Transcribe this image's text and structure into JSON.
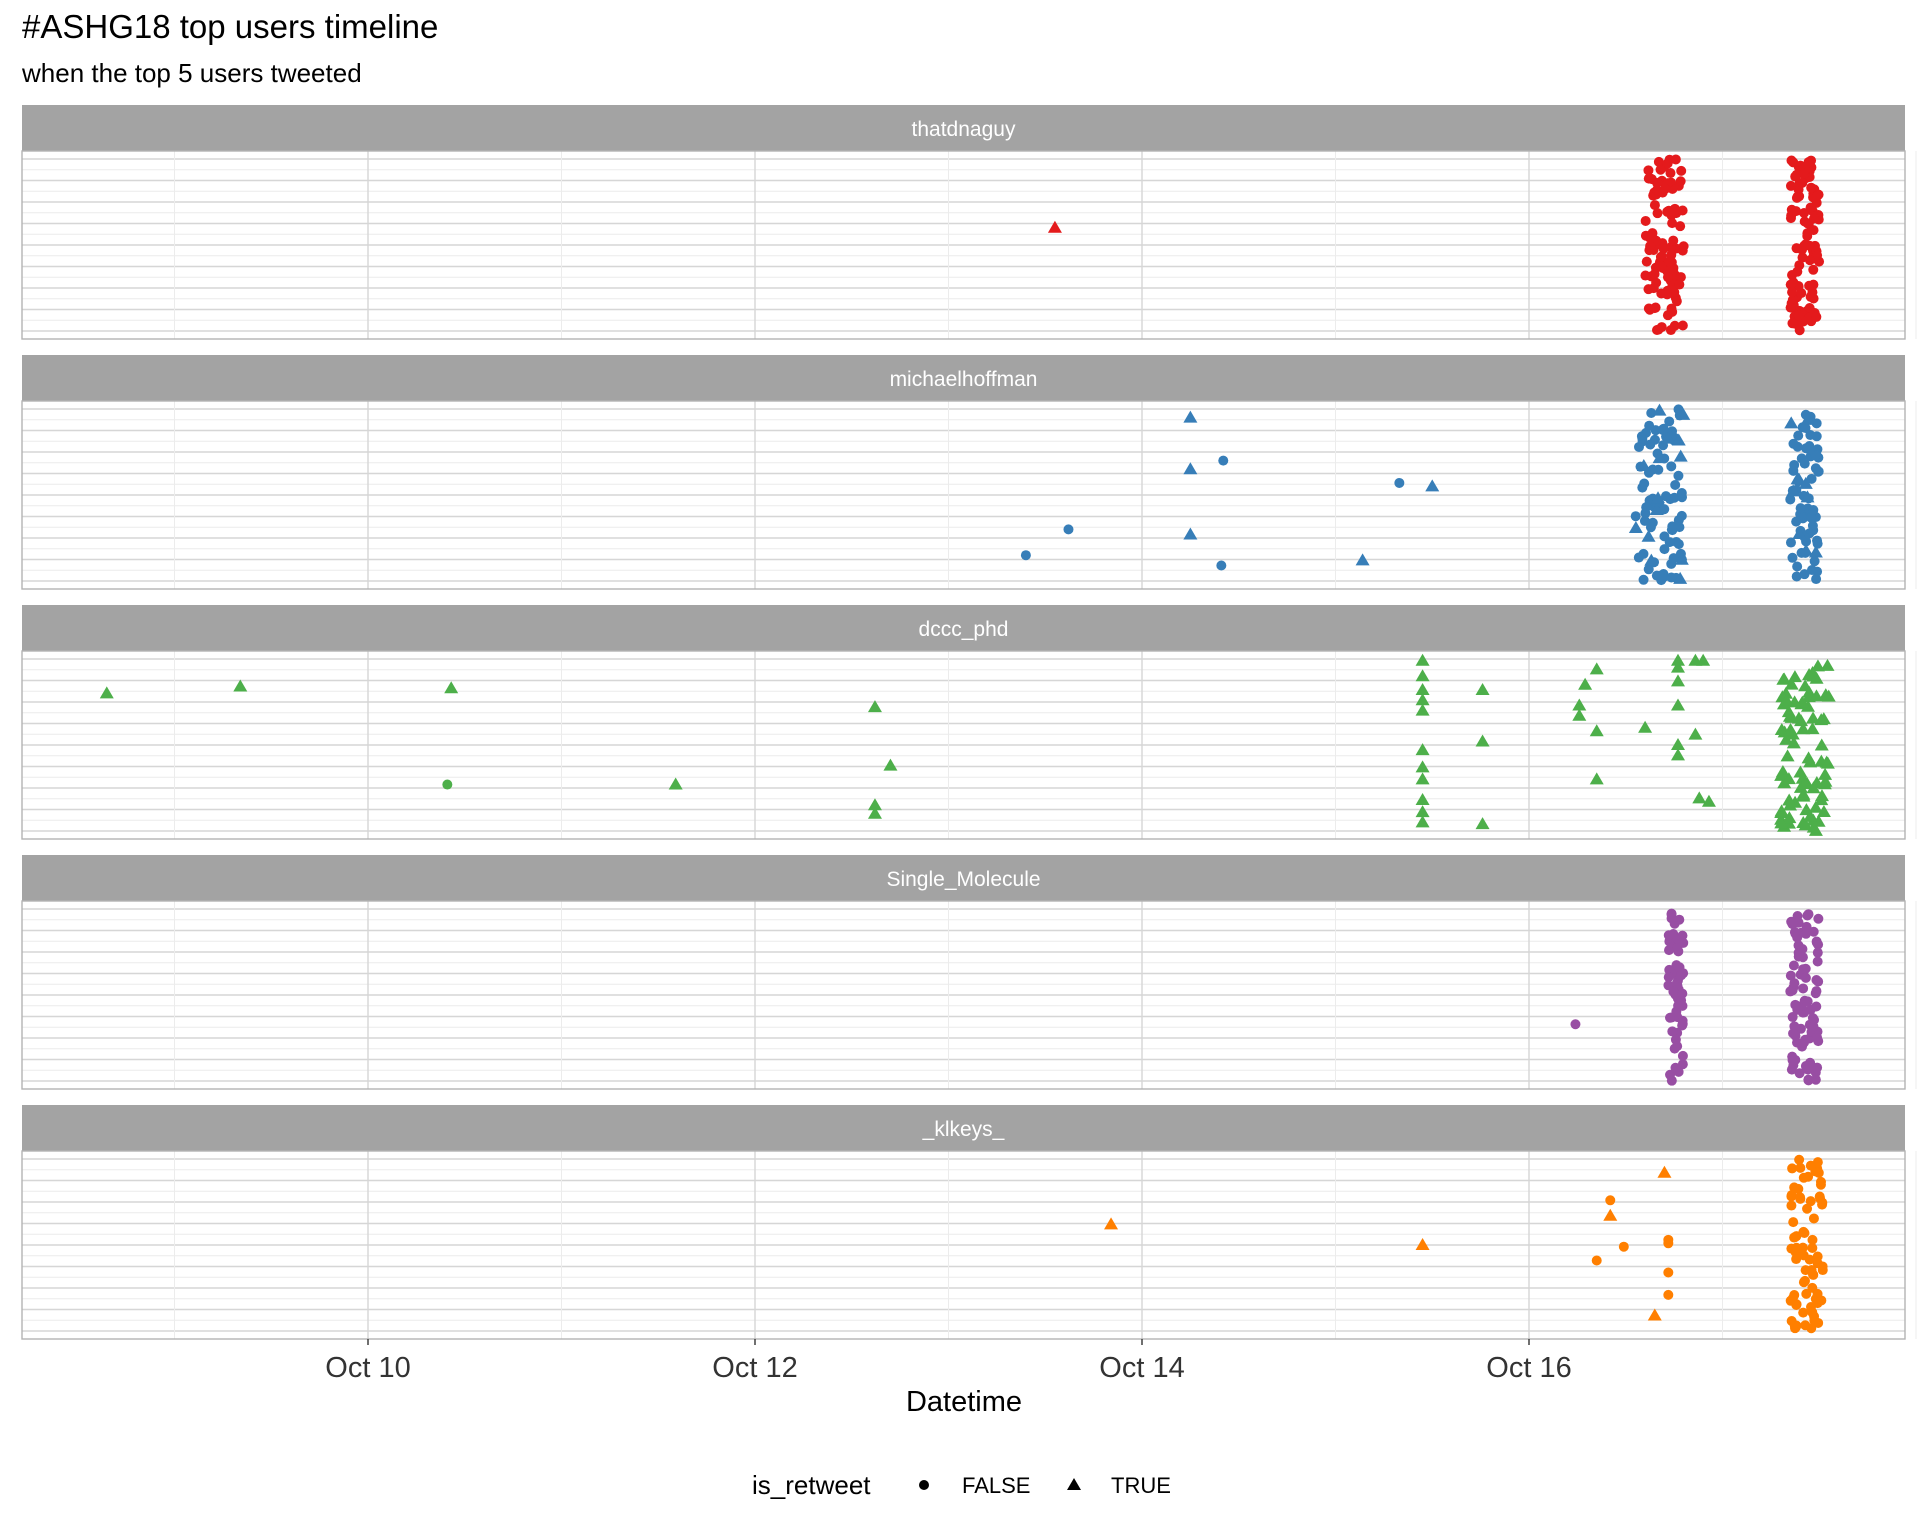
{
  "chart_data": {
    "type": "scatter",
    "title": "#ASHG18 top users timeline",
    "subtitle": "when the top 5 users tweeted",
    "xlabel": "Datetime",
    "ylabel": "",
    "x_unit": "days since Oct 10 00:00",
    "xlim": [
      -1.35,
      8.4
    ],
    "x_ticks": [
      {
        "value": 0,
        "label": "Oct 10"
      },
      {
        "value": 2,
        "label": "Oct 12"
      },
      {
        "value": 4,
        "label": "Oct 14"
      },
      {
        "value": 6,
        "label": "Oct 16"
      }
    ],
    "ylim": [
      0,
      1
    ],
    "legend": {
      "title": "is_retweet",
      "position": "bottom",
      "entries": [
        {
          "label": "FALSE",
          "shape": "circle"
        },
        {
          "label": "TRUE",
          "shape": "triangle"
        }
      ]
    },
    "panels": [
      {
        "name": "thatdnaguy",
        "color": "#E41A1C",
        "points": [
          {
            "x": 3.55,
            "y": 0.6,
            "retweet": true
          }
        ],
        "clusters": [
          {
            "x_min": 6.6,
            "x_max": 6.8,
            "count": 110,
            "retweet": false
          },
          {
            "x_min": 7.35,
            "x_max": 7.5,
            "count": 95,
            "retweet": false
          }
        ]
      },
      {
        "name": "michaelhoffman",
        "color": "#377EB8",
        "points": [
          {
            "x": 4.25,
            "y": 0.95,
            "retweet": true
          },
          {
            "x": 4.42,
            "y": 0.7,
            "retweet": false
          },
          {
            "x": 4.25,
            "y": 0.65,
            "retweet": true
          },
          {
            "x": 5.33,
            "y": 0.57,
            "retweet": false
          },
          {
            "x": 5.5,
            "y": 0.55,
            "retweet": true
          },
          {
            "x": 3.62,
            "y": 0.3,
            "retweet": false
          },
          {
            "x": 4.25,
            "y": 0.27,
            "retweet": true
          },
          {
            "x": 3.4,
            "y": 0.15,
            "retweet": false
          },
          {
            "x": 4.41,
            "y": 0.09,
            "retweet": false
          },
          {
            "x": 5.14,
            "y": 0.12,
            "retweet": true
          }
        ],
        "clusters": [
          {
            "x_min": 6.55,
            "x_max": 6.8,
            "count": 80,
            "retweet": false
          },
          {
            "x_min": 6.55,
            "x_max": 6.8,
            "count": 14,
            "retweet": true
          },
          {
            "x_min": 7.35,
            "x_max": 7.5,
            "count": 62,
            "retweet": false
          },
          {
            "x_min": 7.35,
            "x_max": 7.5,
            "count": 10,
            "retweet": true
          }
        ]
      },
      {
        "name": "dccc_phd",
        "color": "#4DAF4A",
        "points": [
          {
            "x": -1.35,
            "y": 0.8,
            "retweet": true
          },
          {
            "x": -0.66,
            "y": 0.84,
            "retweet": true
          },
          {
            "x": 0.43,
            "y": 0.83,
            "retweet": true
          },
          {
            "x": 0.41,
            "y": 0.27,
            "retweet": false
          },
          {
            "x": 1.59,
            "y": 0.27,
            "retweet": true
          },
          {
            "x": 2.62,
            "y": 0.72,
            "retweet": true
          },
          {
            "x": 2.7,
            "y": 0.38,
            "retweet": true
          },
          {
            "x": 2.62,
            "y": 0.15,
            "retweet": true
          },
          {
            "x": 2.62,
            "y": 0.1,
            "retweet": true
          },
          {
            "x": 5.45,
            "y": 0.99,
            "retweet": true
          },
          {
            "x": 5.45,
            "y": 0.9,
            "retweet": true
          },
          {
            "x": 5.45,
            "y": 0.82,
            "retweet": true
          },
          {
            "x": 5.45,
            "y": 0.76,
            "retweet": true
          },
          {
            "x": 5.45,
            "y": 0.7,
            "retweet": true
          },
          {
            "x": 5.45,
            "y": 0.47,
            "retweet": true
          },
          {
            "x": 5.45,
            "y": 0.37,
            "retweet": true
          },
          {
            "x": 5.45,
            "y": 0.3,
            "retweet": true
          },
          {
            "x": 5.45,
            "y": 0.18,
            "retweet": true
          },
          {
            "x": 5.45,
            "y": 0.11,
            "retweet": true
          },
          {
            "x": 5.45,
            "y": 0.05,
            "retweet": true
          },
          {
            "x": 5.76,
            "y": 0.82,
            "retweet": true
          },
          {
            "x": 5.76,
            "y": 0.52,
            "retweet": true
          },
          {
            "x": 5.76,
            "y": 0.04,
            "retweet": true
          },
          {
            "x": 6.35,
            "y": 0.94,
            "retweet": true
          },
          {
            "x": 6.35,
            "y": 0.58,
            "retweet": true
          },
          {
            "x": 6.35,
            "y": 0.3,
            "retweet": true
          },
          {
            "x": 6.6,
            "y": 0.6,
            "retweet": true
          },
          {
            "x": 6.77,
            "y": 0.95,
            "retweet": true
          },
          {
            "x": 6.77,
            "y": 0.99,
            "retweet": true
          },
          {
            "x": 6.77,
            "y": 0.87,
            "retweet": true
          },
          {
            "x": 6.77,
            "y": 0.73,
            "retweet": true
          },
          {
            "x": 6.77,
            "y": 0.5,
            "retweet": true
          },
          {
            "x": 6.77,
            "y": 0.44,
            "retweet": true
          },
          {
            "x": 6.86,
            "y": 0.99,
            "retweet": true
          },
          {
            "x": 6.9,
            "y": 0.99,
            "retweet": true
          },
          {
            "x": 6.86,
            "y": 0.56,
            "retweet": true
          },
          {
            "x": 6.88,
            "y": 0.19,
            "retweet": true
          },
          {
            "x": 6.93,
            "y": 0.17,
            "retweet": true
          },
          {
            "x": 6.29,
            "y": 0.85,
            "retweet": true
          },
          {
            "x": 6.26,
            "y": 0.73,
            "retweet": true
          },
          {
            "x": 6.26,
            "y": 0.67,
            "retweet": true
          }
        ],
        "clusters": [
          {
            "x_min": 7.3,
            "x_max": 7.55,
            "count": 85,
            "retweet": true
          }
        ]
      },
      {
        "name": "Single_Molecule",
        "color": "#984EA3",
        "points": [
          {
            "x": 6.24,
            "y": 0.33,
            "retweet": false
          }
        ],
        "clusters": [
          {
            "x_min": 6.72,
            "x_max": 6.8,
            "count": 58,
            "retweet": false
          },
          {
            "x_min": 7.35,
            "x_max": 7.5,
            "count": 88,
            "retweet": false
          }
        ]
      },
      {
        "name": "_klkeys_",
        "color": "#FF7F00",
        "points": [
          {
            "x": 3.84,
            "y": 0.62,
            "retweet": true
          },
          {
            "x": 5.45,
            "y": 0.5,
            "retweet": true
          },
          {
            "x": 6.42,
            "y": 0.76,
            "retweet": false
          },
          {
            "x": 6.42,
            "y": 0.67,
            "retweet": true
          },
          {
            "x": 6.49,
            "y": 0.49,
            "retweet": false
          },
          {
            "x": 6.35,
            "y": 0.41,
            "retweet": false
          },
          {
            "x": 6.7,
            "y": 0.92,
            "retweet": true
          },
          {
            "x": 6.72,
            "y": 0.53,
            "retweet": false
          },
          {
            "x": 6.72,
            "y": 0.51,
            "retweet": false
          },
          {
            "x": 6.72,
            "y": 0.34,
            "retweet": false
          },
          {
            "x": 6.72,
            "y": 0.21,
            "retweet": false
          },
          {
            "x": 6.65,
            "y": 0.09,
            "retweet": true
          }
        ],
        "clusters": [
          {
            "x_min": 7.35,
            "x_max": 7.52,
            "count": 75,
            "retweet": false
          }
        ]
      }
    ]
  }
}
